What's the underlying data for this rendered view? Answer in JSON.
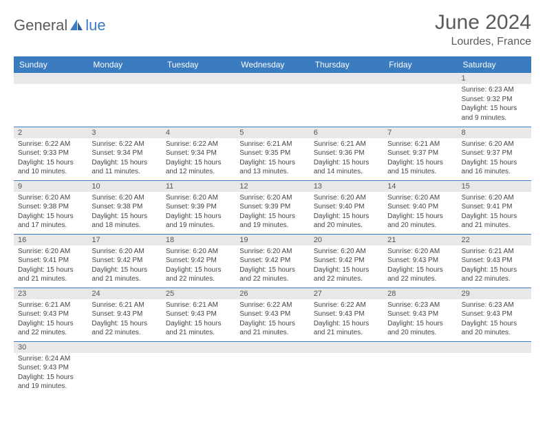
{
  "logo": {
    "text1": "General",
    "text2": "lue",
    "icon_color": "#3b7bbf"
  },
  "title": "June 2024",
  "location": "Lourdes, France",
  "colors": {
    "header_bg": "#3b7bbf",
    "header_text": "#ffffff",
    "daynum_bg": "#e8e8e8",
    "cell_border": "#3b7bbf",
    "text": "#444444"
  },
  "weekdays": [
    "Sunday",
    "Monday",
    "Tuesday",
    "Wednesday",
    "Thursday",
    "Friday",
    "Saturday"
  ],
  "weeks": [
    [
      null,
      null,
      null,
      null,
      null,
      null,
      {
        "d": 1,
        "sr": "6:23 AM",
        "ss": "9:32 PM",
        "dl": "15 hours and 9 minutes."
      }
    ],
    [
      {
        "d": 2,
        "sr": "6:22 AM",
        "ss": "9:33 PM",
        "dl": "15 hours and 10 minutes."
      },
      {
        "d": 3,
        "sr": "6:22 AM",
        "ss": "9:34 PM",
        "dl": "15 hours and 11 minutes."
      },
      {
        "d": 4,
        "sr": "6:22 AM",
        "ss": "9:34 PM",
        "dl": "15 hours and 12 minutes."
      },
      {
        "d": 5,
        "sr": "6:21 AM",
        "ss": "9:35 PM",
        "dl": "15 hours and 13 minutes."
      },
      {
        "d": 6,
        "sr": "6:21 AM",
        "ss": "9:36 PM",
        "dl": "15 hours and 14 minutes."
      },
      {
        "d": 7,
        "sr": "6:21 AM",
        "ss": "9:37 PM",
        "dl": "15 hours and 15 minutes."
      },
      {
        "d": 8,
        "sr": "6:20 AM",
        "ss": "9:37 PM",
        "dl": "15 hours and 16 minutes."
      }
    ],
    [
      {
        "d": 9,
        "sr": "6:20 AM",
        "ss": "9:38 PM",
        "dl": "15 hours and 17 minutes."
      },
      {
        "d": 10,
        "sr": "6:20 AM",
        "ss": "9:38 PM",
        "dl": "15 hours and 18 minutes."
      },
      {
        "d": 11,
        "sr": "6:20 AM",
        "ss": "9:39 PM",
        "dl": "15 hours and 19 minutes."
      },
      {
        "d": 12,
        "sr": "6:20 AM",
        "ss": "9:39 PM",
        "dl": "15 hours and 19 minutes."
      },
      {
        "d": 13,
        "sr": "6:20 AM",
        "ss": "9:40 PM",
        "dl": "15 hours and 20 minutes."
      },
      {
        "d": 14,
        "sr": "6:20 AM",
        "ss": "9:40 PM",
        "dl": "15 hours and 20 minutes."
      },
      {
        "d": 15,
        "sr": "6:20 AM",
        "ss": "9:41 PM",
        "dl": "15 hours and 21 minutes."
      }
    ],
    [
      {
        "d": 16,
        "sr": "6:20 AM",
        "ss": "9:41 PM",
        "dl": "15 hours and 21 minutes."
      },
      {
        "d": 17,
        "sr": "6:20 AM",
        "ss": "9:42 PM",
        "dl": "15 hours and 21 minutes."
      },
      {
        "d": 18,
        "sr": "6:20 AM",
        "ss": "9:42 PM",
        "dl": "15 hours and 22 minutes."
      },
      {
        "d": 19,
        "sr": "6:20 AM",
        "ss": "9:42 PM",
        "dl": "15 hours and 22 minutes."
      },
      {
        "d": 20,
        "sr": "6:20 AM",
        "ss": "9:42 PM",
        "dl": "15 hours and 22 minutes."
      },
      {
        "d": 21,
        "sr": "6:20 AM",
        "ss": "9:43 PM",
        "dl": "15 hours and 22 minutes."
      },
      {
        "d": 22,
        "sr": "6:21 AM",
        "ss": "9:43 PM",
        "dl": "15 hours and 22 minutes."
      }
    ],
    [
      {
        "d": 23,
        "sr": "6:21 AM",
        "ss": "9:43 PM",
        "dl": "15 hours and 22 minutes."
      },
      {
        "d": 24,
        "sr": "6:21 AM",
        "ss": "9:43 PM",
        "dl": "15 hours and 22 minutes."
      },
      {
        "d": 25,
        "sr": "6:21 AM",
        "ss": "9:43 PM",
        "dl": "15 hours and 21 minutes."
      },
      {
        "d": 26,
        "sr": "6:22 AM",
        "ss": "9:43 PM",
        "dl": "15 hours and 21 minutes."
      },
      {
        "d": 27,
        "sr": "6:22 AM",
        "ss": "9:43 PM",
        "dl": "15 hours and 21 minutes."
      },
      {
        "d": 28,
        "sr": "6:23 AM",
        "ss": "9:43 PM",
        "dl": "15 hours and 20 minutes."
      },
      {
        "d": 29,
        "sr": "6:23 AM",
        "ss": "9:43 PM",
        "dl": "15 hours and 20 minutes."
      }
    ],
    [
      {
        "d": 30,
        "sr": "6:24 AM",
        "ss": "9:43 PM",
        "dl": "15 hours and 19 minutes."
      },
      null,
      null,
      null,
      null,
      null,
      null
    ]
  ],
  "labels": {
    "sunrise": "Sunrise:",
    "sunset": "Sunset:",
    "daylight": "Daylight:"
  }
}
